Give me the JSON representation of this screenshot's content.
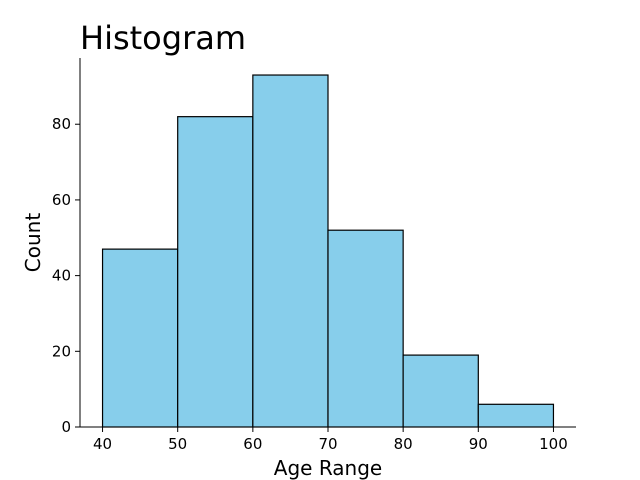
{
  "chart_data": {
    "type": "bar",
    "title": "Histogram",
    "xlabel": "Age Range",
    "ylabel": "Count",
    "bins": [
      {
        "start": 40,
        "end": 50,
        "count": 47
      },
      {
        "start": 50,
        "end": 60,
        "count": 82
      },
      {
        "start": 60,
        "end": 70,
        "count": 93
      },
      {
        "start": 70,
        "end": 80,
        "count": 52
      },
      {
        "start": 80,
        "end": 90,
        "count": 19
      },
      {
        "start": 90,
        "end": 100,
        "count": 6
      }
    ],
    "xlim": [
      37,
      103
    ],
    "ylim": [
      0,
      97.5
    ],
    "xticks": [
      40,
      50,
      60,
      70,
      80,
      90,
      100
    ],
    "yticks": [
      0,
      20,
      40,
      60,
      80
    ],
    "grid": false,
    "legend": "none",
    "bar_color": "#87CEEB",
    "edge_color": "#000000"
  }
}
